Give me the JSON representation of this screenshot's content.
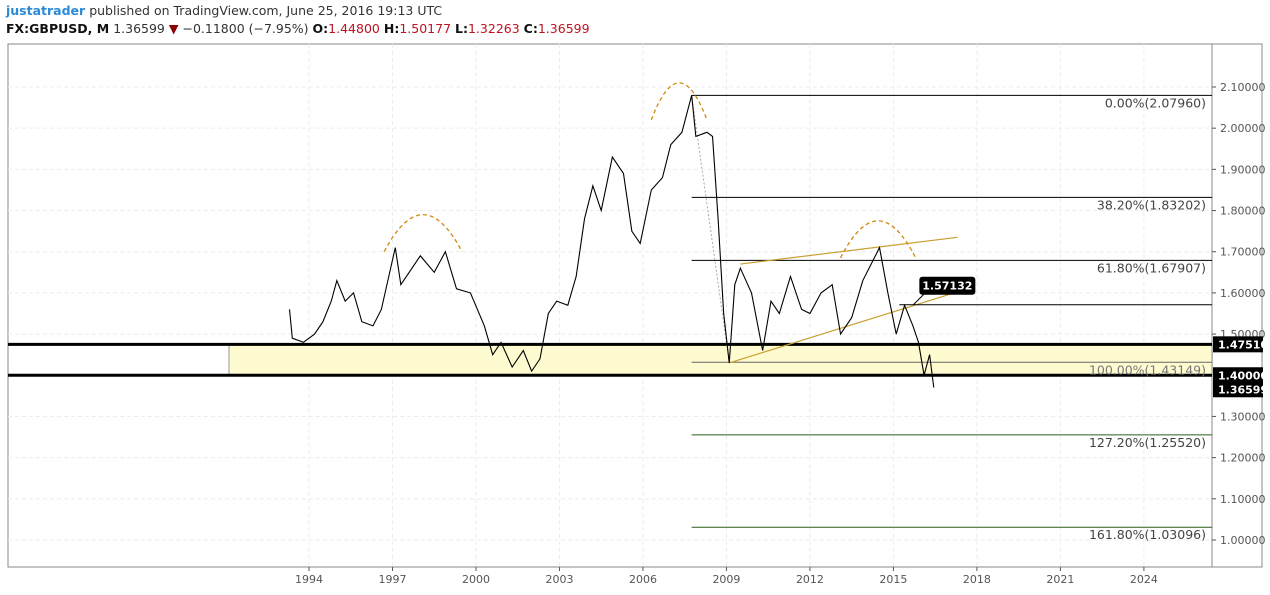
{
  "header": {
    "user": "justatrader",
    "published": "published on TradingView.com, June 25, 2016 19:13 UTC",
    "symbol": "FX:GBPUSD, M",
    "last": "1.36599",
    "change": "−0.11800 (−7.95%)",
    "o_label": "O:",
    "o": "1.44800",
    "h_label": "H:",
    "h": "1.50177",
    "l_label": "L:",
    "l": "1.32263",
    "c_label": "C:",
    "c": "1.36599"
  },
  "colors": {
    "price": "#000000",
    "fib": "#000000",
    "fib_ext": "#2e5e1a",
    "zone": "#fffbd0",
    "trend": "#c8a030",
    "arc": "#d08a10",
    "down": "#8b0000"
  },
  "chart_data": {
    "type": "line",
    "title": "FX:GBPUSD, M",
    "ylim": [
      0.92,
      2.16
    ],
    "xlim": [
      1986.8,
      2026.5
    ],
    "x_ticks": [
      "1994",
      "1997",
      "2000",
      "2003",
      "2006",
      "2009",
      "2012",
      "2015",
      "2018",
      "2021",
      "2024"
    ],
    "x_tick_values": [
      1994,
      1997,
      2000,
      2003,
      2006,
      2009,
      2012,
      2015,
      2018,
      2021,
      2024
    ],
    "y_ticks": [
      "2.10000",
      "2.00000",
      "1.90000",
      "1.80000",
      "1.70000",
      "1.60000",
      "1.50000",
      "1.30000",
      "1.20000",
      "1.10000",
      "1.00000"
    ],
    "y_tick_values": [
      2.1,
      2.0,
      1.9,
      1.8,
      1.7,
      1.6,
      1.5,
      1.3,
      1.2,
      1.1,
      1.0
    ],
    "price_labels": [
      {
        "text": "1.47510",
        "value": 1.4751
      },
      {
        "text": "1.40000",
        "value": 1.4
      },
      {
        "text": "1.36599",
        "value": 1.36599
      }
    ],
    "series": [
      {
        "name": "GBPUSD",
        "x": [
          1993.3,
          1993.4,
          1993.8,
          1994.2,
          1994.5,
          1994.8,
          1995.0,
          1995.3,
          1995.6,
          1995.9,
          1996.3,
          1996.6,
          1996.9,
          1997.1,
          1997.3,
          1997.6,
          1998.0,
          1998.5,
          1998.9,
          1999.3,
          1999.8,
          2000.3,
          2000.6,
          2000.9,
          2001.3,
          2001.7,
          2002.0,
          2002.3,
          2002.6,
          2002.9,
          2003.3,
          2003.6,
          2003.9,
          2004.2,
          2004.5,
          2004.9,
          2005.3,
          2005.6,
          2005.9,
          2006.3,
          2006.7,
          2007.0,
          2007.4,
          2007.75,
          2007.9,
          2008.3,
          2008.5,
          2008.7,
          2008.9,
          2009.1,
          2009.3,
          2009.5,
          2009.9,
          2010.3,
          2010.6,
          2010.9,
          2011.3,
          2011.7,
          2012.0,
          2012.4,
          2012.8,
          2013.1,
          2013.5,
          2013.9,
          2014.5,
          2014.8,
          2015.1,
          2015.4,
          2015.7,
          2015.9,
          2016.1,
          2016.3,
          2016.45
        ],
        "y": [
          1.56,
          1.49,
          1.48,
          1.5,
          1.53,
          1.58,
          1.63,
          1.58,
          1.6,
          1.53,
          1.52,
          1.56,
          1.65,
          1.71,
          1.62,
          1.65,
          1.69,
          1.65,
          1.7,
          1.61,
          1.6,
          1.52,
          1.45,
          1.48,
          1.42,
          1.46,
          1.41,
          1.44,
          1.55,
          1.58,
          1.57,
          1.64,
          1.78,
          1.86,
          1.8,
          1.93,
          1.89,
          1.75,
          1.72,
          1.85,
          1.88,
          1.96,
          1.99,
          2.08,
          1.98,
          1.99,
          1.98,
          1.78,
          1.55,
          1.43,
          1.62,
          1.66,
          1.6,
          1.46,
          1.58,
          1.55,
          1.64,
          1.56,
          1.55,
          1.6,
          1.62,
          1.5,
          1.54,
          1.63,
          1.71,
          1.6,
          1.5,
          1.57,
          1.52,
          1.48,
          1.4,
          1.45,
          1.37
        ]
      }
    ],
    "fib_levels": [
      {
        "label": "0.00%(2.07960)",
        "value": 2.0796
      },
      {
        "label": "38.20%(1.83202)",
        "value": 1.83202
      },
      {
        "label": "61.80%(1.67907)",
        "value": 1.67907
      },
      {
        "label": "100.00%(1.43149)",
        "value": 1.43149
      },
      {
        "label": "127.20%(1.25520)",
        "value": 1.2552
      },
      {
        "label": "161.80%(1.03096)",
        "value": 1.03096
      }
    ],
    "fib_start_x": 2007.75,
    "zone": {
      "top": 1.4751,
      "bottom": 1.4
    },
    "callout": {
      "text": "1.57132",
      "value": 1.57132,
      "x": 2015.5
    },
    "trendlines": [
      {
        "x": [
          2009.1,
          2017.9
        ],
        "y": [
          1.43,
          1.615
        ]
      },
      {
        "x": [
          2009.5,
          2017.3
        ],
        "y": [
          1.67,
          1.735
        ]
      }
    ],
    "arcs": [
      {
        "x": [
          1996.7,
          1999.5
        ],
        "peak": 1.79,
        "base": 1.7
      },
      {
        "x": [
          2006.3,
          2008.3
        ],
        "peak": 2.11,
        "base": 2.02
      },
      {
        "x": [
          2013.1,
          2015.8
        ],
        "peak": 1.775,
        "base": 1.685
      }
    ]
  }
}
